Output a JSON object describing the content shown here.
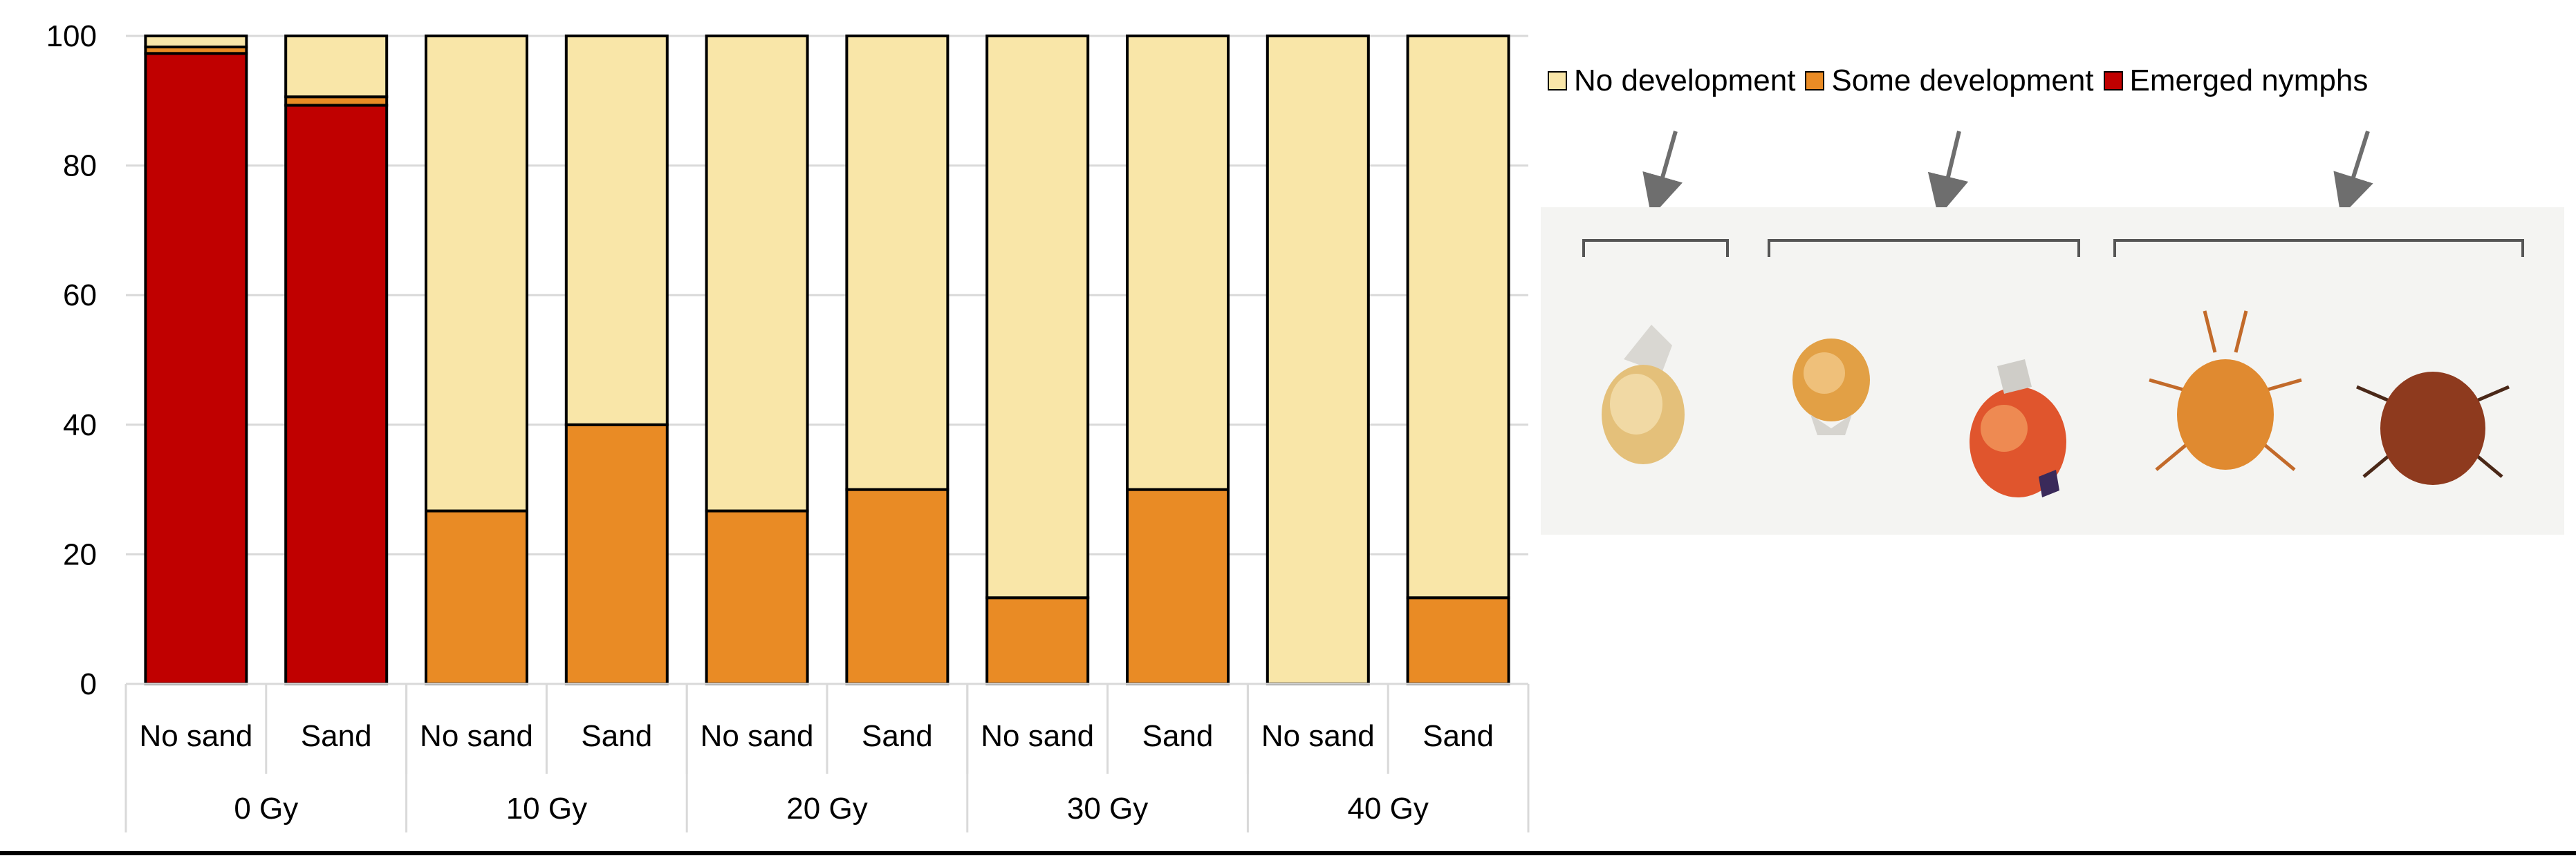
{
  "chart_data": {
    "type": "bar",
    "stacked": true,
    "ylim": [
      0,
      100
    ],
    "yticks": [
      0,
      20,
      40,
      60,
      80,
      100
    ],
    "grid": true,
    "legend_position": "top-right",
    "groups": [
      "0 Gy",
      "10 Gy",
      "20 Gy",
      "30 Gy",
      "40 Gy"
    ],
    "categories": [
      "No sand",
      "Sand",
      "No sand",
      "Sand",
      "No sand",
      "Sand",
      "No sand",
      "Sand",
      "No sand",
      "Sand"
    ],
    "series": [
      {
        "name": "Emerged nymphs",
        "color": "#c00000",
        "values": [
          97.3,
          89.3,
          0,
          0,
          0,
          0,
          0,
          0,
          0,
          0
        ]
      },
      {
        "name": "Some development",
        "color": "#e98b25",
        "values": [
          1.0,
          1.3,
          26.7,
          40,
          26.7,
          30,
          13.3,
          30,
          0,
          13.3
        ]
      },
      {
        "name": "No development",
        "color": "#f9e6a8",
        "values": [
          1.7,
          9.4,
          73.3,
          60,
          73.3,
          70,
          86.7,
          70,
          100,
          86.7
        ]
      }
    ]
  },
  "legend": {
    "items": [
      {
        "label": "No development",
        "color": "#f9e6a8"
      },
      {
        "label": "Some development",
        "color": "#e98b25"
      },
      {
        "label": "Emerged nymphs",
        "color": "#c00000"
      }
    ]
  }
}
